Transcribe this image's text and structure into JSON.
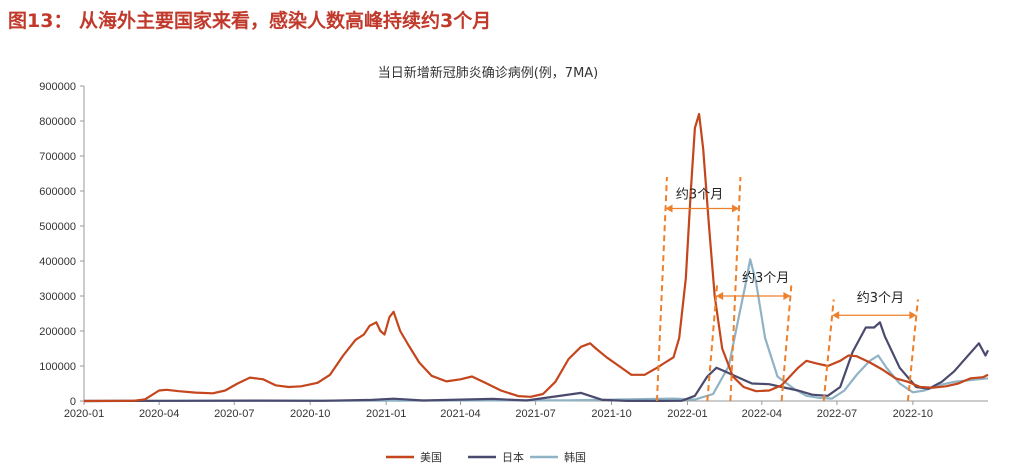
{
  "figure_title": "图13：  从海外主要国家来看，感染人数高峰持续约3个月",
  "colors": {
    "us": "#c4461c",
    "jp": "#4a4a6e",
    "kr": "#8fb3c5",
    "annotation": "#ee7f2b",
    "title": "#c0392b"
  },
  "chart_data": {
    "type": "line",
    "title": "当日新增新冠肺炎确诊病例(例，7MA)",
    "xlabel": "",
    "ylabel": "",
    "ylim": [
      0,
      900000
    ],
    "yticks": [
      "0",
      "100000",
      "200000",
      "300000",
      "400000",
      "500000",
      "600000",
      "700000",
      "800000",
      "900000"
    ],
    "xlim": [
      "2020-01-01",
      "2022-12-31"
    ],
    "xticks": [
      "2020-01",
      "2020-04",
      "2020-07",
      "2020-10",
      "2021-01",
      "2021-04",
      "2021-07",
      "2021-10",
      "2022-01",
      "2022-04",
      "2022-07",
      "2022-10"
    ],
    "grid": false,
    "legend_position": "bottom",
    "series": [
      {
        "name": "美国",
        "points": [
          [
            "2020-01-01",
            0
          ],
          [
            "2020-03-01",
            500
          ],
          [
            "2020-03-15",
            5000
          ],
          [
            "2020-04-01",
            30000
          ],
          [
            "2020-04-10",
            32000
          ],
          [
            "2020-04-25",
            28000
          ],
          [
            "2020-05-15",
            24000
          ],
          [
            "2020-06-05",
            22000
          ],
          [
            "2020-06-20",
            30000
          ],
          [
            "2020-07-05",
            50000
          ],
          [
            "2020-07-20",
            67000
          ],
          [
            "2020-08-05",
            62000
          ],
          [
            "2020-08-20",
            45000
          ],
          [
            "2020-09-05",
            40000
          ],
          [
            "2020-09-20",
            42000
          ],
          [
            "2020-10-10",
            52000
          ],
          [
            "2020-10-25",
            75000
          ],
          [
            "2020-11-10",
            130000
          ],
          [
            "2020-11-25",
            175000
          ],
          [
            "2020-12-05",
            190000
          ],
          [
            "2020-12-12",
            215000
          ],
          [
            "2020-12-20",
            225000
          ],
          [
            "2020-12-25",
            200000
          ],
          [
            "2020-12-30",
            190000
          ],
          [
            "2021-01-05",
            240000
          ],
          [
            "2021-01-10",
            255000
          ],
          [
            "2021-01-18",
            200000
          ],
          [
            "2021-01-28",
            160000
          ],
          [
            "2021-02-10",
            110000
          ],
          [
            "2021-02-25",
            72000
          ],
          [
            "2021-03-15",
            56000
          ],
          [
            "2021-04-01",
            62000
          ],
          [
            "2021-04-15",
            70000
          ],
          [
            "2021-05-01",
            52000
          ],
          [
            "2021-05-20",
            30000
          ],
          [
            "2021-06-10",
            14000
          ],
          [
            "2021-06-25",
            12000
          ],
          [
            "2021-07-10",
            20000
          ],
          [
            "2021-07-25",
            55000
          ],
          [
            "2021-08-10",
            120000
          ],
          [
            "2021-08-25",
            155000
          ],
          [
            "2021-09-05",
            165000
          ],
          [
            "2021-09-12",
            150000
          ],
          [
            "2021-09-25",
            125000
          ],
          [
            "2021-10-10",
            100000
          ],
          [
            "2021-10-25",
            75000
          ],
          [
            "2021-11-10",
            75000
          ],
          [
            "2021-11-25",
            95000
          ],
          [
            "2021-12-05",
            110000
          ],
          [
            "2021-12-15",
            125000
          ],
          [
            "2021-12-22",
            180000
          ],
          [
            "2021-12-30",
            350000
          ],
          [
            "2022-01-05",
            600000
          ],
          [
            "2022-01-10",
            780000
          ],
          [
            "2022-01-15",
            820000
          ],
          [
            "2022-01-20",
            720000
          ],
          [
            "2022-01-27",
            500000
          ],
          [
            "2022-02-03",
            300000
          ],
          [
            "2022-02-12",
            150000
          ],
          [
            "2022-02-25",
            70000
          ],
          [
            "2022-03-10",
            40000
          ],
          [
            "2022-03-25",
            28000
          ],
          [
            "2022-04-10",
            30000
          ],
          [
            "2022-04-25",
            45000
          ],
          [
            "2022-05-05",
            70000
          ],
          [
            "2022-05-15",
            95000
          ],
          [
            "2022-05-25",
            115000
          ],
          [
            "2022-06-05",
            108000
          ],
          [
            "2022-06-20",
            100000
          ],
          [
            "2022-07-05",
            115000
          ],
          [
            "2022-07-15",
            130000
          ],
          [
            "2022-07-25",
            128000
          ],
          [
            "2022-08-10",
            110000
          ],
          [
            "2022-08-25",
            90000
          ],
          [
            "2022-09-10",
            65000
          ],
          [
            "2022-09-25",
            55000
          ],
          [
            "2022-10-10",
            40000
          ],
          [
            "2022-10-25",
            38000
          ],
          [
            "2022-11-10",
            42000
          ],
          [
            "2022-11-25",
            50000
          ],
          [
            "2022-12-10",
            65000
          ],
          [
            "2022-12-25",
            68000
          ],
          [
            "2022-12-31",
            75000
          ]
        ]
      },
      {
        "name": "日本",
        "points": [
          [
            "2020-01-01",
            0
          ],
          [
            "2020-04-15",
            500
          ],
          [
            "2020-08-05",
            1200
          ],
          [
            "2020-10-15",
            600
          ],
          [
            "2020-12-15",
            3000
          ],
          [
            "2021-01-10",
            6500
          ],
          [
            "2021-02-15",
            1500
          ],
          [
            "2021-05-10",
            6000
          ],
          [
            "2021-06-20",
            1500
          ],
          [
            "2021-08-25",
            23000
          ],
          [
            "2021-09-20",
            3000
          ],
          [
            "2021-10-20",
            300
          ],
          [
            "2021-12-01",
            200
          ],
          [
            "2021-12-25",
            500
          ],
          [
            "2022-01-10",
            15000
          ],
          [
            "2022-01-25",
            70000
          ],
          [
            "2022-02-05",
            95000
          ],
          [
            "2022-02-15",
            85000
          ],
          [
            "2022-03-01",
            70000
          ],
          [
            "2022-03-20",
            50000
          ],
          [
            "2022-04-10",
            48000
          ],
          [
            "2022-04-25",
            40000
          ],
          [
            "2022-05-15",
            30000
          ],
          [
            "2022-06-01",
            18000
          ],
          [
            "2022-06-20",
            15000
          ],
          [
            "2022-07-05",
            40000
          ],
          [
            "2022-07-20",
            140000
          ],
          [
            "2022-08-05",
            210000
          ],
          [
            "2022-08-15",
            210000
          ],
          [
            "2022-08-22",
            225000
          ],
          [
            "2022-08-28",
            185000
          ],
          [
            "2022-09-15",
            95000
          ],
          [
            "2022-10-05",
            40000
          ],
          [
            "2022-10-20",
            35000
          ],
          [
            "2022-11-05",
            55000
          ],
          [
            "2022-11-20",
            85000
          ],
          [
            "2022-12-05",
            125000
          ],
          [
            "2022-12-20",
            165000
          ],
          [
            "2022-12-28",
            130000
          ],
          [
            "2022-12-31",
            145000
          ]
        ]
      },
      {
        "name": "韩国",
        "points": [
          [
            "2020-01-01",
            0
          ],
          [
            "2020-12-25",
            1000
          ],
          [
            "2021-08-10",
            2000
          ],
          [
            "2021-12-15",
            7000
          ],
          [
            "2022-01-10",
            4000
          ],
          [
            "2022-02-01",
            20000
          ],
          [
            "2022-02-20",
            100000
          ],
          [
            "2022-03-05",
            250000
          ],
          [
            "2022-03-12",
            330000
          ],
          [
            "2022-03-18",
            405000
          ],
          [
            "2022-03-25",
            340000
          ],
          [
            "2022-04-05",
            180000
          ],
          [
            "2022-04-20",
            70000
          ],
          [
            "2022-05-10",
            35000
          ],
          [
            "2022-05-25",
            15000
          ],
          [
            "2022-06-10",
            9000
          ],
          [
            "2022-06-25",
            7000
          ],
          [
            "2022-07-10",
            30000
          ],
          [
            "2022-07-25",
            75000
          ],
          [
            "2022-08-10",
            115000
          ],
          [
            "2022-08-20",
            130000
          ],
          [
            "2022-08-30",
            95000
          ],
          [
            "2022-09-15",
            50000
          ],
          [
            "2022-10-01",
            25000
          ],
          [
            "2022-10-15",
            30000
          ],
          [
            "2022-11-01",
            45000
          ],
          [
            "2022-11-20",
            55000
          ],
          [
            "2022-12-10",
            60000
          ],
          [
            "2022-12-31",
            65000
          ]
        ]
      }
    ],
    "annotations": [
      {
        "label": "约3个月",
        "start": "2021-11-25",
        "end": "2022-02-22",
        "line_top": 640000,
        "arrow_y": 550000,
        "label_y": 578000,
        "label_x": "2021-12-18"
      },
      {
        "label": "约3个月",
        "start": "2022-01-25",
        "end": "2022-04-25",
        "line_top": 340000,
        "arrow_y": 300000,
        "label_y": 340000,
        "label_x": "2022-03-08"
      },
      {
        "label": "约3个月",
        "start": "2022-06-15",
        "end": "2022-09-25",
        "line_top": 290000,
        "arrow_y": 245000,
        "label_y": 283000,
        "label_x": "2022-07-25"
      }
    ]
  }
}
